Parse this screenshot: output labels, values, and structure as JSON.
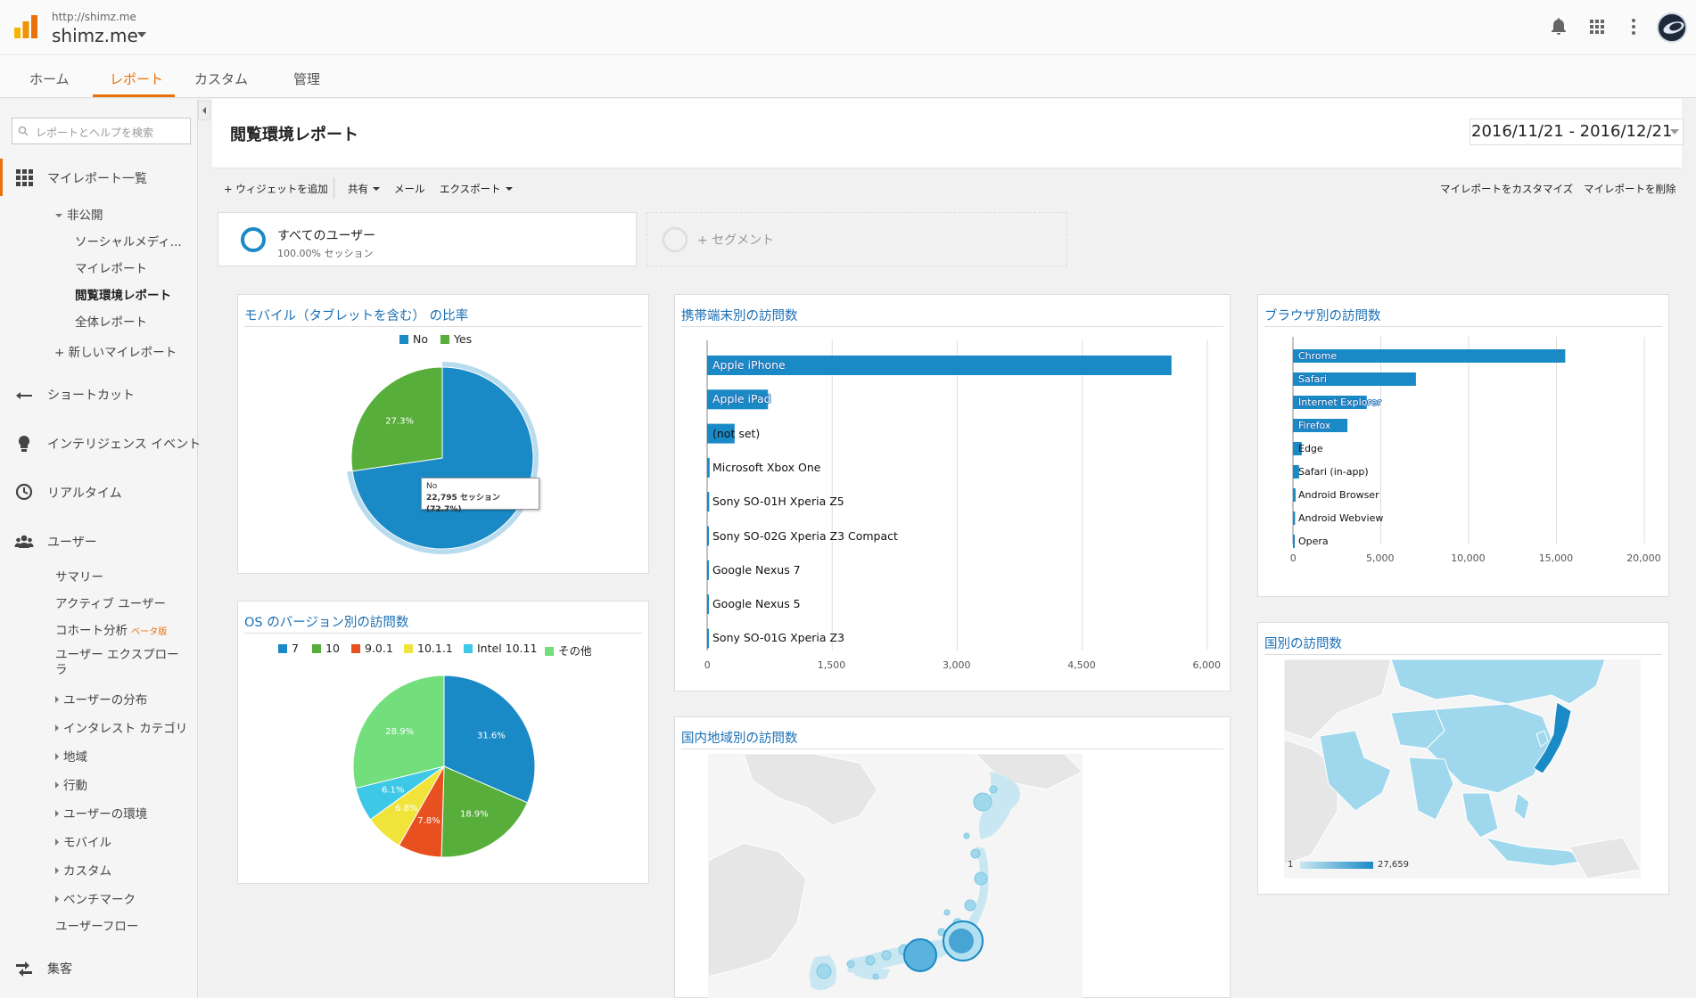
{
  "header": {
    "site_url": "http://shimz.me",
    "site_name": "shimz.me"
  },
  "nav": {
    "tabs": [
      "ホーム",
      "レポート",
      "カスタム",
      "管理"
    ],
    "active": "レポート"
  },
  "sidebar": {
    "search_placeholder": "レポートとヘルプを検索",
    "my_reports": "マイレポート一覧",
    "private": "非公開",
    "reports": [
      "ソーシャルメディ...",
      "マイレポート",
      "閲覧環境レポート",
      "全体レポート"
    ],
    "new_report": "+ 新しいマイレポート",
    "shortcut": "ショートカット",
    "intelligence": "インテリジェンス イベント",
    "realtime": "リアルタイム",
    "users": "ユーザー",
    "user_items": [
      "サマリー",
      "アクティブ ユーザー",
      "コホート分析",
      "ユーザー エクスプローラ"
    ],
    "beta": "ベータ版",
    "user_groups": [
      "ユーザーの分布",
      "インタレスト カテゴリ",
      "地域",
      "行動",
      "ユーザーの環境",
      "モバイル",
      "カスタム",
      "ベンチマーク"
    ],
    "user_flow": "ユーザーフロー",
    "acquisition": "集客"
  },
  "main": {
    "title": "閲覧環境レポート",
    "date_range": "2016/11/21 - 2016/12/21",
    "toolbar": {
      "add_widget": "+ ウィジェットを追加",
      "share": "共有",
      "email": "メール",
      "export": "エクスポート",
      "customize": "マイレポートをカスタマイズ",
      "delete": "マイレポートを削除"
    },
    "segments": {
      "all_users": "すべてのユーザー",
      "all_users_sub": "100.00% セッション",
      "add_segment": "+ セグメント"
    }
  },
  "colors": {
    "blue": "#1a8ac6",
    "green": "#57ae3a",
    "orange": "#e8710a",
    "red": "#e8511f",
    "yellow": "#f0e43a",
    "cyan": "#3cc8e6",
    "lightgreen": "#72df7c",
    "map_light": "#9fd8ec",
    "map_dark": "#1a8ac6"
  },
  "widgets": {
    "mobile": {
      "title": "モバイル（タブレットを含む） の比率",
      "tooltip_title": "No",
      "tooltip_value": "22,795 セッション (72.7%)"
    },
    "os": {
      "title": "OS のバージョン別の訪問数"
    },
    "device": {
      "title": "携帯端末別の訪問数"
    },
    "browser": {
      "title": "ブラウザ別の訪問数"
    },
    "region": {
      "title": "国内地域別の訪問数"
    },
    "country": {
      "title": "国別の訪問数",
      "scale_min": "1",
      "scale_max": "27,659"
    }
  },
  "chart_data": [
    {
      "type": "pie",
      "labels": [
        "No",
        "Yes"
      ],
      "values": [
        72.7,
        27.3
      ],
      "colors": [
        "#1a8ac6",
        "#57ae3a"
      ],
      "slice_labels": [
        "",
        "27.3%"
      ]
    },
    {
      "type": "pie",
      "labels": [
        "7",
        "10",
        "9.0.1",
        "10.1.1",
        "Intel 10.11",
        "その他"
      ],
      "values": [
        31.6,
        18.9,
        7.8,
        6.8,
        6.1,
        28.9
      ],
      "colors": [
        "#1a8ac6",
        "#57ae3a",
        "#e8511f",
        "#f0e43a",
        "#3cc8e6",
        "#72df7c"
      ],
      "slice_labels": [
        "31.6%",
        "18.9%",
        "7.8%",
        "6.8%",
        "6.1%",
        "28.9%"
      ]
    },
    {
      "type": "bar",
      "categories": [
        "Apple iPhone",
        "Apple iPad",
        "(not set)",
        "Microsoft Xbox One",
        "Sony SO-01H Xperia Z5",
        "Sony SO-02G Xperia Z3 Compact",
        "Google Nexus 7",
        "Google Nexus 5",
        "Sony SO-01G Xperia Z3"
      ],
      "values": [
        5570,
        730,
        330,
        30,
        25,
        22,
        20,
        18,
        15
      ],
      "xlim": [
        0,
        6000
      ],
      "ticks": [
        "0",
        "1,500",
        "3,000",
        "4,500",
        "6,000"
      ]
    },
    {
      "type": "bar",
      "categories": [
        "Chrome",
        "Safari",
        "Internet Explorer",
        "Firefox",
        "Edge",
        "Safari (in-app)",
        "Android Browser",
        "Android Webview",
        "Opera"
      ],
      "values": [
        15500,
        7000,
        4200,
        3100,
        500,
        350,
        150,
        120,
        80
      ],
      "xlim": [
        0,
        20000
      ],
      "ticks": [
        "0",
        "5,000",
        "10,000",
        "15,000",
        "20,000"
      ]
    }
  ]
}
